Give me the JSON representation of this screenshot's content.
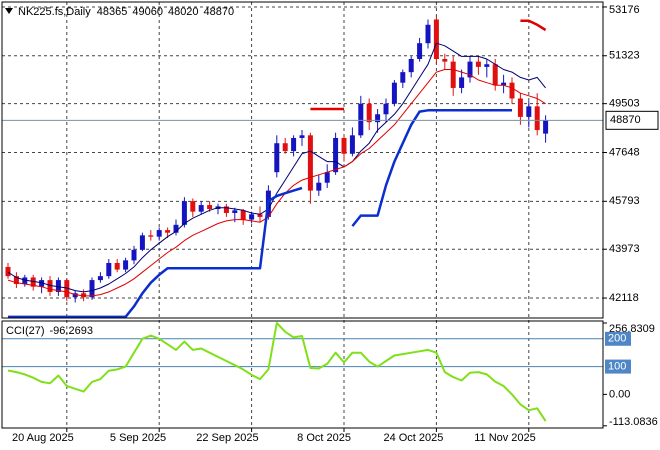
{
  "chart_data": [
    {
      "type": "candlestick",
      "title": "NK225.fs,Daily",
      "categories": [
        null,
        null,
        null,
        null,
        null,
        null,
        null,
        "20 Aug 2025",
        null,
        null,
        null,
        null,
        null,
        null,
        null,
        null,
        null,
        null,
        "5 Sep 2025",
        null,
        null,
        null,
        null,
        null,
        null,
        null,
        null,
        null,
        null,
        "22 Sep 2025",
        null,
        null,
        null,
        null,
        null,
        null,
        null,
        null,
        null,
        null,
        "8 Oct 2025",
        null,
        null,
        null,
        null,
        null,
        null,
        null,
        null,
        null,
        null,
        "24 Oct 2025",
        null,
        null,
        null,
        null,
        null,
        null,
        null,
        null,
        null,
        null,
        "11 Nov 2025",
        null,
        null
      ],
      "open": [
        43300,
        42950,
        42650,
        42900,
        42550,
        42800,
        42350,
        42800,
        42150,
        42300,
        42150,
        42800,
        42950,
        43450,
        43200,
        43550,
        43950,
        44500,
        44450,
        44700,
        44600,
        44900,
        45800,
        45400,
        45650,
        45500,
        45600,
        45350,
        45450,
        45100,
        45300,
        45200,
        46900,
        48000,
        47700,
        48200,
        48300,
        46200,
        46500,
        46900,
        48200,
        47600,
        48300,
        49500,
        48800,
        49100,
        49500,
        50300,
        50700,
        51200,
        51800,
        52700,
        51200,
        51100,
        50100,
        50500,
        51100,
        50900,
        51000,
        50200,
        50300,
        49700,
        49000,
        49400,
        48365
      ],
      "high": [
        43450,
        43100,
        43000,
        43000,
        42900,
        42950,
        42900,
        42850,
        42400,
        42450,
        42900,
        43100,
        43600,
        43600,
        43650,
        44100,
        44600,
        44700,
        44800,
        44800,
        45100,
        45950,
        45900,
        45800,
        45800,
        45700,
        45700,
        45550,
        45500,
        45400,
        45600,
        46400,
        48300,
        48200,
        48300,
        48500,
        48400,
        46800,
        47200,
        48400,
        48300,
        48600,
        49800,
        49700,
        49300,
        49700,
        50400,
        50800,
        51300,
        52000,
        52700,
        52800,
        51400,
        51300,
        50800,
        51300,
        51300,
        51200,
        51200,
        50600,
        50500,
        49900,
        49600,
        49900,
        49060
      ],
      "low": [
        42850,
        42500,
        42550,
        42400,
        42300,
        42200,
        42200,
        42000,
        41950,
        42000,
        42050,
        42700,
        42850,
        43100,
        43100,
        43400,
        43900,
        44300,
        44300,
        44400,
        44500,
        44800,
        45200,
        45300,
        45400,
        45300,
        45200,
        45000,
        44900,
        44950,
        45000,
        45100,
        46700,
        47600,
        47500,
        47900,
        45700,
        46000,
        46300,
        46800,
        47300,
        47500,
        48200,
        48500,
        48400,
        48800,
        49400,
        50100,
        50500,
        51100,
        51600,
        51000,
        50800,
        49800,
        49900,
        50300,
        50600,
        50500,
        50000,
        49900,
        49500,
        48700,
        48600,
        48300,
        48020
      ],
      "close": [
        42950,
        42650,
        42900,
        42550,
        42800,
        42350,
        42800,
        42150,
        42300,
        42150,
        42800,
        42950,
        43450,
        43200,
        43550,
        43950,
        44500,
        44450,
        44700,
        44600,
        44900,
        45800,
        45400,
        45650,
        45500,
        45600,
        45350,
        45450,
        45100,
        45300,
        45200,
        46200,
        48000,
        47700,
        48200,
        48300,
        46200,
        46500,
        46900,
        48200,
        47600,
        48300,
        49500,
        48800,
        49100,
        49500,
        50300,
        50700,
        51200,
        51800,
        52500,
        51200,
        51100,
        50100,
        50500,
        51100,
        50900,
        51000,
        50200,
        50300,
        49700,
        49000,
        49400,
        48500,
        48870
      ],
      "up_color": "#1414c0",
      "down_color": "#e01010",
      "series": [
        {
          "color": "#00006e",
          "values": [
            43100,
            42900,
            42800,
            42750,
            42700,
            42600,
            42550,
            42500,
            42400,
            42350,
            42400,
            42500,
            42650,
            42850,
            43050,
            43300,
            43650,
            43950,
            44200,
            44450,
            44650,
            44950,
            45150,
            45300,
            45450,
            45550,
            45550,
            45500,
            45450,
            45350,
            45300,
            45500,
            46100,
            46600,
            47100,
            47600,
            47700,
            47500,
            47300,
            47300,
            47100,
            47300,
            47700,
            48000,
            48500,
            48800,
            49100,
            49500,
            50000,
            50500,
            51000,
            51800,
            51700,
            51500,
            51300,
            51300,
            51300,
            51200,
            51000,
            50800,
            50700,
            50500,
            50400,
            50500,
            50100
          ]
        },
        {
          "color": "#e00000",
          "values": [
            42800,
            42700,
            42650,
            42600,
            42550,
            42450,
            42400,
            42350,
            42250,
            42200,
            42200,
            42250,
            42350,
            42500,
            42650,
            42850,
            43100,
            43350,
            43600,
            43850,
            44050,
            44300,
            44500,
            44650,
            44800,
            44950,
            45050,
            45100,
            45100,
            45050,
            45000,
            45200,
            45700,
            46100,
            46400,
            46600,
            46700,
            46800,
            46900,
            47000,
            47100,
            47300,
            47600,
            47800,
            48100,
            48400,
            48700,
            49100,
            49500,
            49900,
            50300,
            50700,
            50800,
            50800,
            50700,
            50600,
            50400,
            50300,
            50200,
            50200,
            50100,
            49900,
            49800,
            49700,
            49500
          ]
        },
        {
          "color": "#0a2ed0",
          "values": [
            41400,
            41400,
            41400,
            41400,
            41400,
            41400,
            41400,
            41400,
            41400,
            41400,
            41400,
            41400,
            41400,
            41400,
            41400,
            41800,
            42300,
            42700,
            43000,
            43250,
            43250,
            43250,
            43250,
            43250,
            43250,
            43250,
            43250,
            43250,
            43250,
            43250,
            43250,
            45800,
            46000,
            46100,
            46200,
            46300,
            null,
            null,
            null,
            null,
            null,
            44850,
            45250,
            45250,
            45250,
            46400,
            47300,
            48000,
            48700,
            49200,
            49250,
            49250,
            49250,
            49250,
            49250,
            49250,
            49250,
            49250,
            49250,
            49250,
            49250,
            null,
            null,
            null,
            null
          ]
        },
        {
          "color": "#e00000",
          "values": [
            null,
            null,
            null,
            null,
            null,
            null,
            null,
            null,
            null,
            null,
            null,
            null,
            null,
            null,
            null,
            null,
            null,
            null,
            null,
            null,
            null,
            null,
            null,
            null,
            null,
            null,
            null,
            null,
            null,
            null,
            null,
            null,
            null,
            null,
            null,
            null,
            49300,
            49300,
            49300,
            49300,
            49300,
            null,
            null,
            null,
            null,
            null,
            null,
            null,
            null,
            null,
            null,
            null,
            null,
            null,
            null,
            null,
            null,
            null,
            null,
            null,
            null,
            52650,
            52650,
            52500,
            52300
          ]
        }
      ],
      "ylim": [
        41360,
        53365
      ],
      "yticks": [
        53176,
        51323,
        49503,
        47648,
        45793,
        43973,
        42118
      ],
      "grid": true,
      "price_line": true
    },
    {
      "type": "line",
      "title": "CCI(27)",
      "values": [
        86,
        80,
        72,
        60,
        45,
        40,
        68,
        30,
        20,
        10,
        45,
        55,
        85,
        90,
        100,
        150,
        200,
        212,
        200,
        180,
        160,
        190,
        160,
        165,
        150,
        135,
        120,
        105,
        90,
        70,
        55,
        90,
        256.8309,
        225,
        205,
        210,
        95,
        93,
        110,
        150,
        115,
        150,
        150,
        118,
        100,
        120,
        140,
        145,
        150,
        155,
        160,
        150,
        80,
        62,
        50,
        78,
        80,
        72,
        46,
        30,
        0,
        -36,
        -57,
        -50,
        -96.2693
      ],
      "color": "#7fe01a",
      "ylim": [
        -121,
        264
      ],
      "yticks": [
        256.8309,
        {
          "value": 0,
          "label": "0.00"
        },
        -113.0836
      ],
      "levels": [
        200,
        100
      ],
      "grid": false
    }
  ]
}
